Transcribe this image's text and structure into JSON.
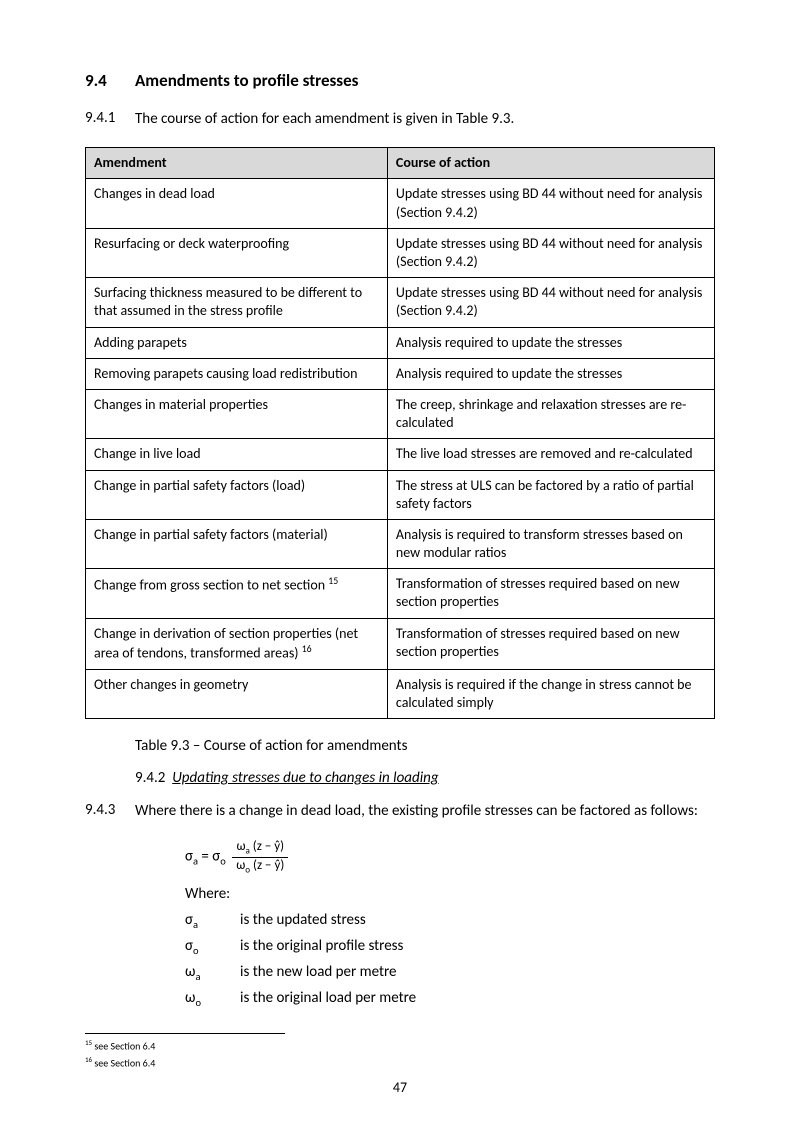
{
  "section": {
    "number": "9.4",
    "title": "Amendments to profile stresses",
    "intro_num": "9.4.1",
    "intro_text": "The course of action for each amendment is given in Table 9.3.",
    "table_caption": "Table 9.3 – Course of action for amendments"
  },
  "table": {
    "columns": [
      "Amendment",
      "Course of action"
    ],
    "rows": [
      [
        "Changes in dead load",
        "Update stresses using BD 44 without need for analysis (Section 9.4.2)"
      ],
      [
        "Resurfacing or deck waterproofing",
        "Update stresses using BD 44 without need for analysis (Section 9.4.2)"
      ],
      [
        "Surfacing thickness measured to be different to that assumed in the stress profile",
        "Update stresses using BD 44 without need for analysis (Section 9.4.2)"
      ],
      [
        "Adding parapets",
        "Analysis required to update the stresses"
      ],
      [
        "Removing parapets causing load redistribution",
        "Analysis required to update the stresses"
      ],
      [
        "Changes in material properties",
        "The creep, shrinkage and relaxation stresses are re-calculated"
      ],
      [
        "Change in live load",
        "The live load stresses are removed and re-calculated"
      ],
      [
        "Change in partial safety factors (load)",
        "The stress at ULS can be factored by a ratio of partial safety factors"
      ],
      [
        "Change in partial safety factors (material)",
        "Analysis is required to transform stresses based on  new modular ratios"
      ],
      [
        "Change from gross section to net section {ref15}",
        "Transformation of stresses required based on new section properties"
      ],
      [
        "Change in derivation of section properties (net area of tendons, transformed areas) {ref16}",
        "Transformation of stresses required based on new section properties"
      ],
      [
        "Other changes in geometry",
        "Analysis is required if the change in stress cannot be calculated simply"
      ]
    ],
    "ref15": "15",
    "ref16": "16"
  },
  "subsection": {
    "label_num": "9.4.2",
    "label_text": "Updating stresses due to changes in loading",
    "para_num": "9.4.3",
    "para_text": "Where there is a change in dead load, the existing profile stresses can be factored as follows:"
  },
  "formula": {
    "expr_sigma": "σ",
    "expr_sub_a": "a",
    "expr_eq": " = ",
    "expr_sub_o": "o",
    "frac_num_left": "ω",
    "frac_num_left_sub": "a",
    "frac_num_right": " (z − ŷ)",
    "frac_den_left": "ω",
    "frac_den_left_sub": "o",
    "frac_den_right": " (z − ŷ)",
    "where": "Where:",
    "defs": [
      {
        "sym": "σa",
        "sym_base": "σ",
        "sym_sub": "a",
        "desc": "is the updated stress"
      },
      {
        "sym": "σo",
        "sym_base": "σ",
        "sym_sub": "o",
        "desc": "is the original profile stress"
      },
      {
        "sym": "ωa",
        "sym_base": "ω",
        "sym_sub": "a",
        "desc": "is the new load per metre"
      },
      {
        "sym": "ωo",
        "sym_base": "ω",
        "sym_sub": "o",
        "desc": "is the original load per metre"
      }
    ]
  },
  "footnotes": [
    {
      "num": "15",
      "text": " see Section 6.4"
    },
    {
      "num": "16",
      "text": " see Section 6.4"
    }
  ],
  "page_number": "47"
}
